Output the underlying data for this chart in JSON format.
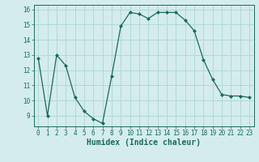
{
  "x": [
    0,
    1,
    2,
    3,
    4,
    5,
    6,
    7,
    8,
    9,
    10,
    11,
    12,
    13,
    14,
    15,
    16,
    17,
    18,
    19,
    20,
    21,
    22,
    23
  ],
  "y": [
    12.8,
    9.0,
    13.0,
    12.3,
    10.2,
    9.3,
    8.8,
    8.5,
    11.6,
    14.9,
    15.8,
    15.7,
    15.4,
    15.8,
    15.8,
    15.8,
    15.3,
    14.6,
    12.7,
    11.4,
    10.4,
    10.3,
    10.3,
    10.2
  ],
  "xlabel": "Humidex (Indice chaleur)",
  "ylim": [
    8.3,
    16.3
  ],
  "xlim": [
    -0.5,
    23.5
  ],
  "yticks": [
    9,
    10,
    11,
    12,
    13,
    14,
    15,
    16
  ],
  "xticks": [
    0,
    1,
    2,
    3,
    4,
    5,
    6,
    7,
    8,
    9,
    10,
    11,
    12,
    13,
    14,
    15,
    16,
    17,
    18,
    19,
    20,
    21,
    22,
    23
  ],
  "line_color": "#1a6b5a",
  "marker": "D",
  "marker_size": 2.0,
  "bg_color": "#d4ecec",
  "grid_color": "#add5d5",
  "xlabel_fontsize": 7,
  "tick_fontsize": 5.5
}
